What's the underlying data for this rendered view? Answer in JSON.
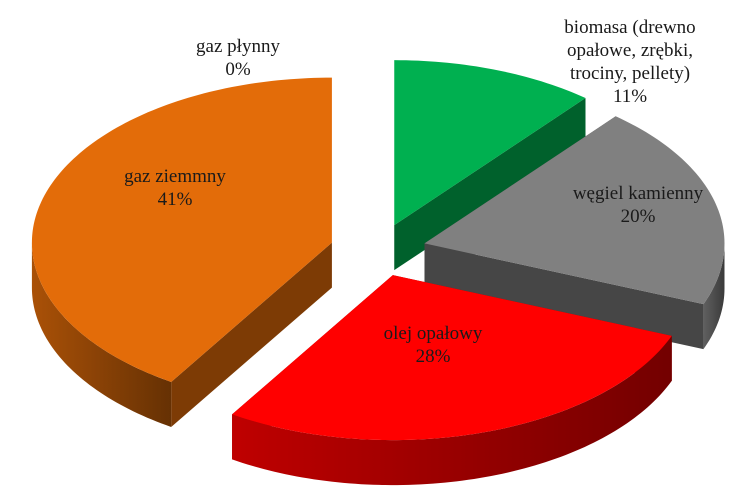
{
  "chart_data": {
    "type": "pie3d",
    "categories": [
      "biomasa (drewno opałowe, zrębki, trociny, pellety)",
      "węgiel kamienny",
      "olej opałowy",
      "gaz ziemmny",
      "gaz płynny"
    ],
    "values": [
      11,
      20,
      28,
      41,
      0
    ],
    "value_labels": [
      "11%",
      "20%",
      "28%",
      "41%",
      "0%"
    ],
    "colors": [
      "#00b050",
      "#808080",
      "#ff0000",
      "#e36c09",
      "#ffc000"
    ]
  }
}
